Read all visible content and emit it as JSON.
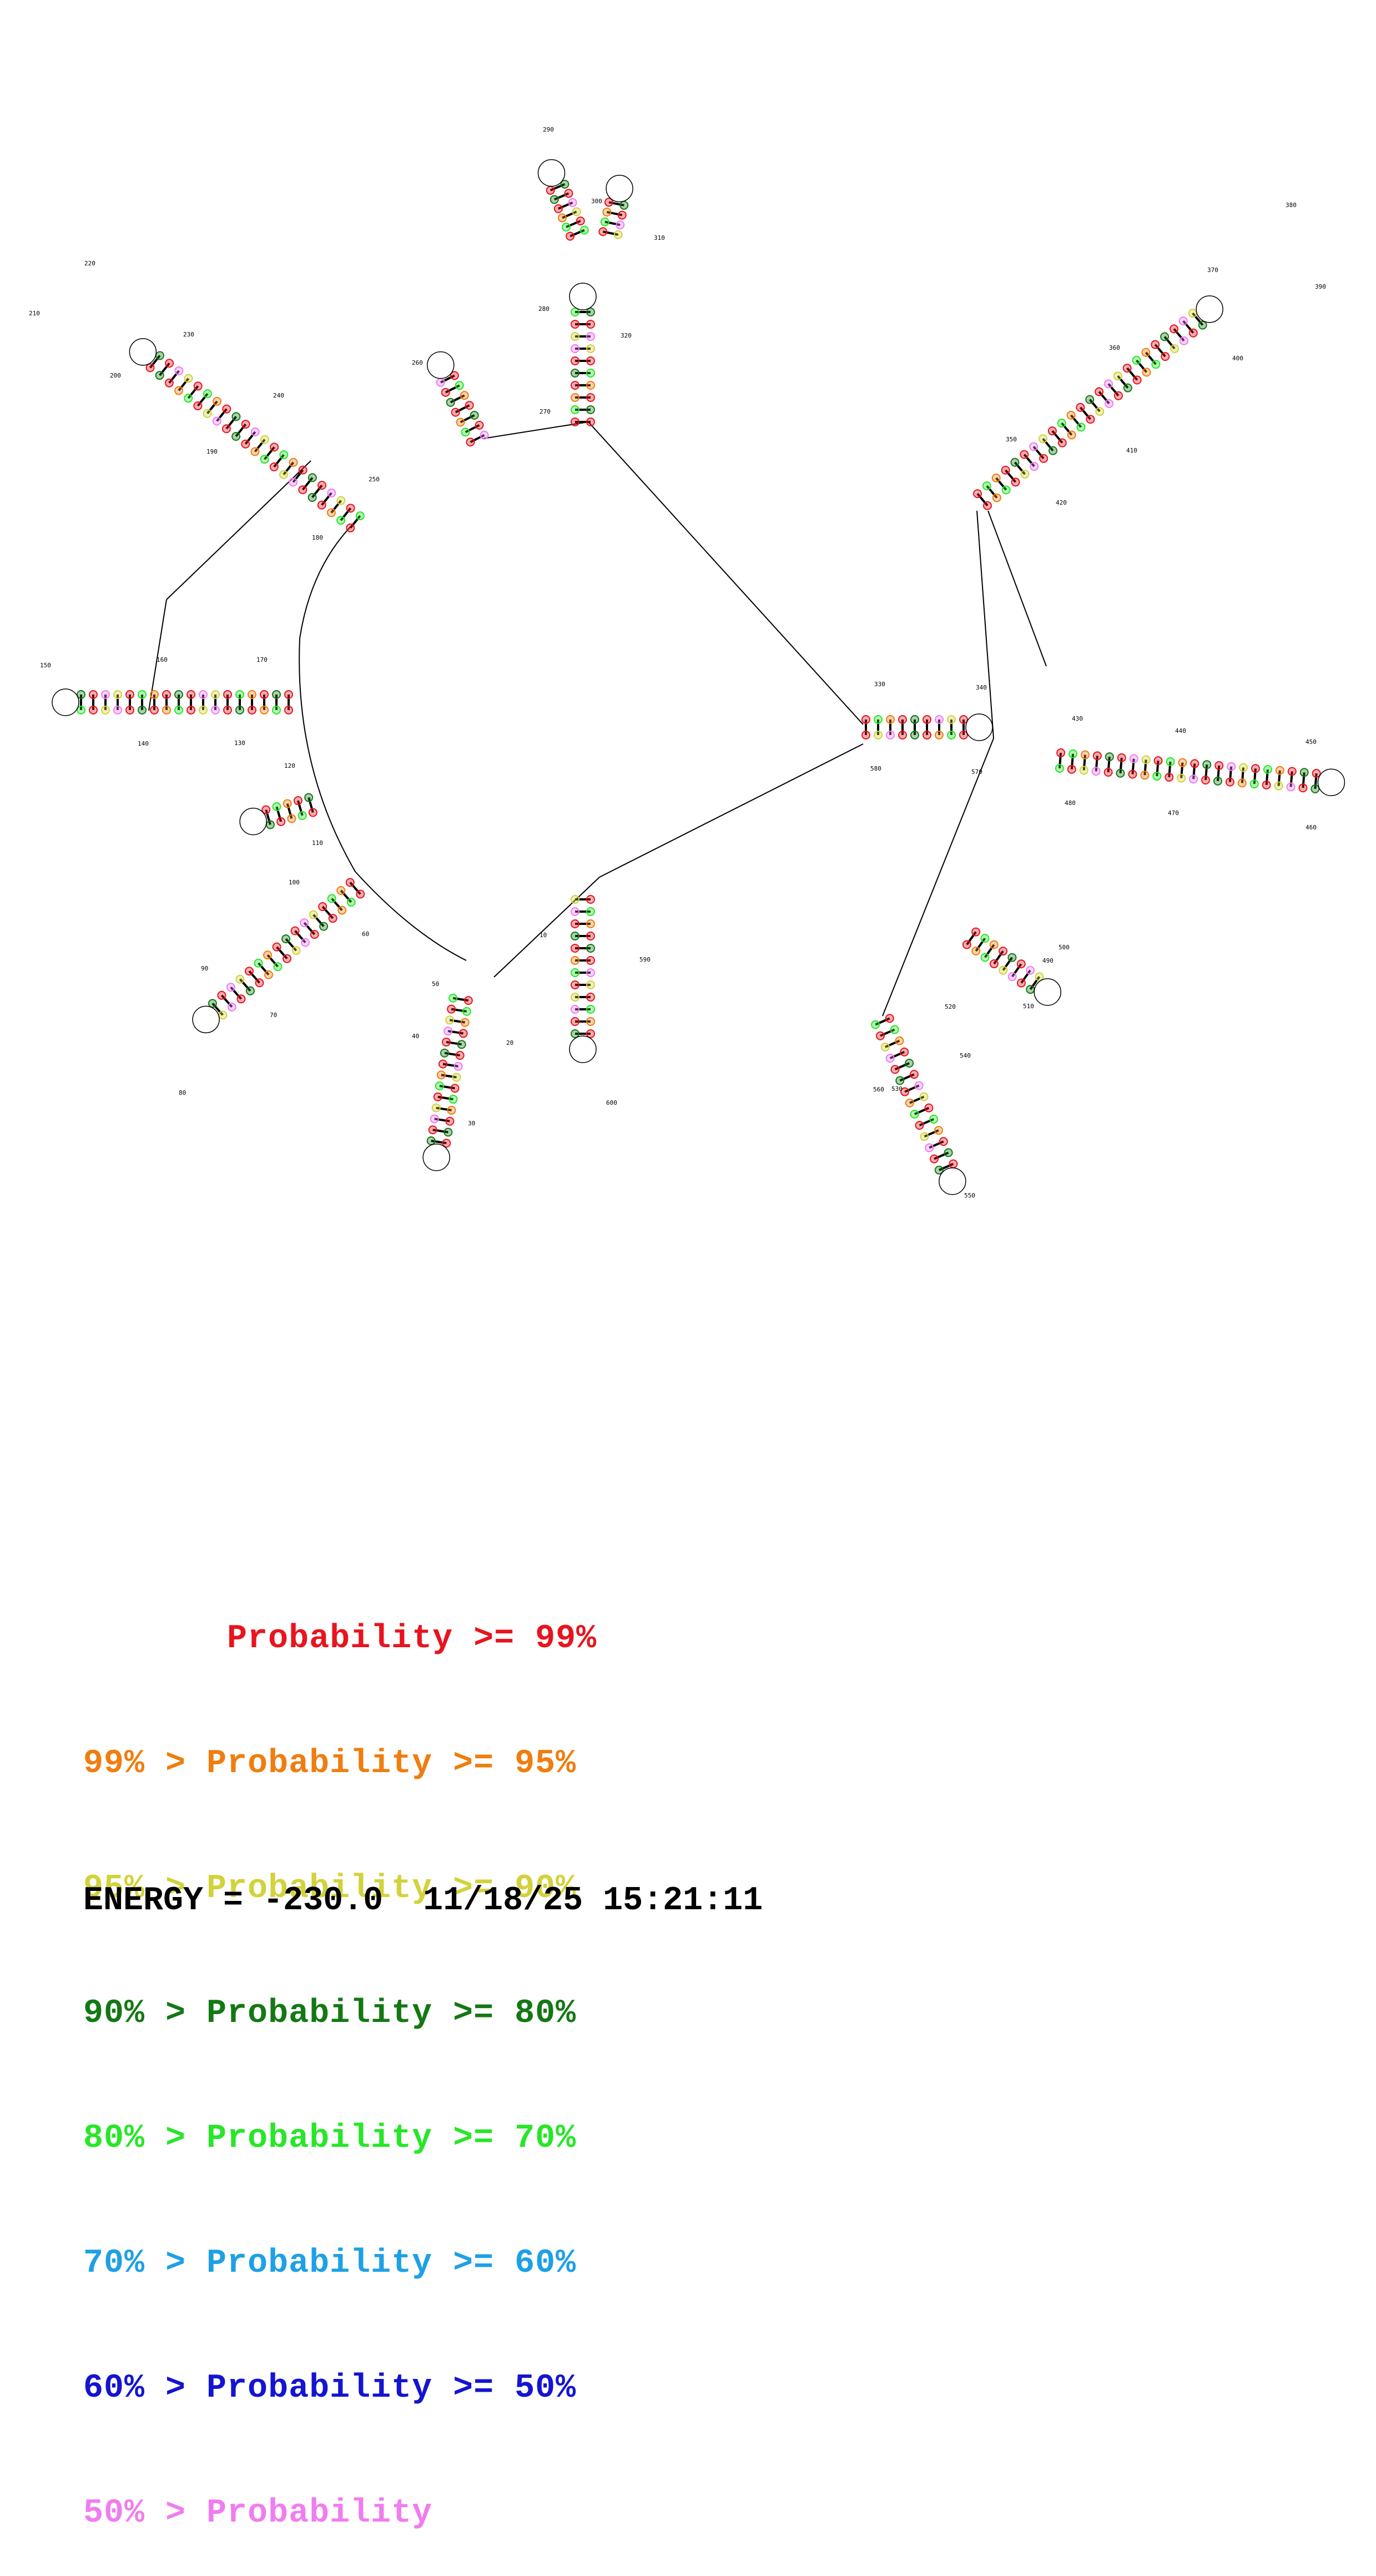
{
  "legend": [
    {
      "prefix": "       ",
      "text": "Probability >= 99%",
      "color": "#e8141e"
    },
    {
      "prefix": "99% > ",
      "text": "Probability >= 95%",
      "color": "#f07d0f"
    },
    {
      "prefix": "95% > ",
      "text": "Probability >= 90%",
      "color": "#d2d23c"
    },
    {
      "prefix": "90% > ",
      "text": "Probability >= 80%",
      "color": "#147814"
    },
    {
      "prefix": "80% > ",
      "text": "Probability >= 70%",
      "color": "#28e628"
    },
    {
      "prefix": "70% > ",
      "text": "Probability >= 60%",
      "color": "#1ea0e6"
    },
    {
      "prefix": "60% > ",
      "text": "Probability >= 50%",
      "color": "#1414d2"
    },
    {
      "prefix": "50% > ",
      "text": "Probability",
      "color": "#f07df0"
    }
  ],
  "footer": {
    "energy_label": "ENERGY = -230.0",
    "timestamp": "11/18/25 15:21:11"
  },
  "position_labels": [
    "10",
    "20",
    "30",
    "40",
    "50",
    "60",
    "70",
    "80",
    "90",
    "100",
    "110",
    "120",
    "130",
    "140",
    "150",
    "160",
    "170",
    "180",
    "190",
    "200",
    "210",
    "220",
    "230",
    "240",
    "250",
    "260",
    "270",
    "280",
    "290",
    "300",
    "310",
    "320",
    "330",
    "340",
    "350",
    "360",
    "370",
    "380",
    "390",
    "400",
    "410",
    "420",
    "430",
    "440",
    "450",
    "460",
    "470",
    "480",
    "490",
    "500",
    "510",
    "520",
    "530",
    "540",
    "550",
    "560",
    "570",
    "580",
    "590",
    "600"
  ],
  "probability_colors": {
    "p99": "#e8141e",
    "p95": "#f07d0f",
    "p90": "#d2d23c",
    "p80": "#147814",
    "p70": "#28e628",
    "p60": "#1ea0e6",
    "p50": "#1414d2",
    "plow": "#f07df0"
  }
}
